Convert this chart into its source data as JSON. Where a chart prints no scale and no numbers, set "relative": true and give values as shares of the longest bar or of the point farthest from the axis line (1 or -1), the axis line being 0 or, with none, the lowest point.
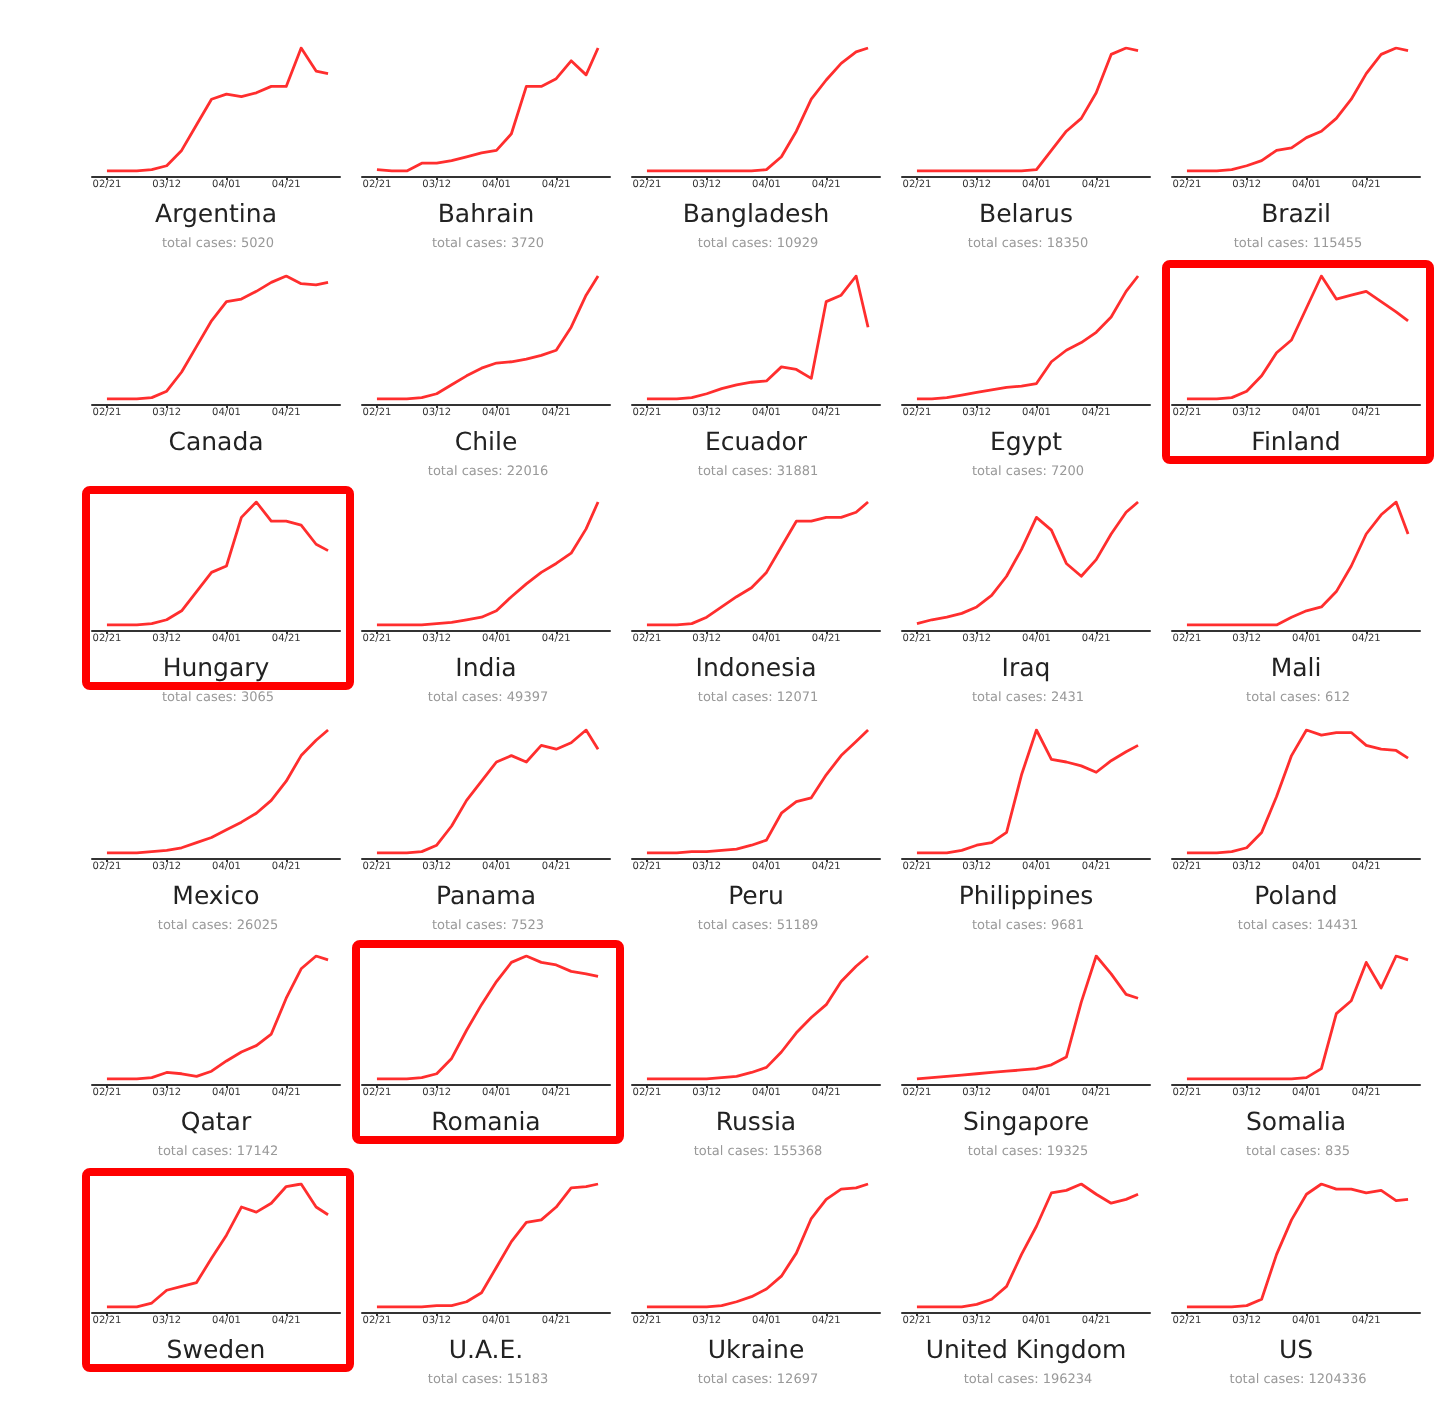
{
  "chart_data": [
    {
      "type": "line",
      "xlabel": "Argentina",
      "annotations": [
        "total cases: 5020"
      ],
      "relative": true,
      "marker": "none",
      "x": [
        "--02-21",
        "--02-26",
        "--03-02",
        "--03-07",
        "--03-12",
        "--03-17",
        "--03-22",
        "--03-27",
        "--04-01",
        "--04-06",
        "--04-11",
        "--04-16",
        "--04-21",
        "--04-26",
        "--05-01",
        "--05-05"
      ],
      "xlim": [
        "--02-16",
        "--05-09"
      ],
      "xticks": [
        {
          "value": "--02-21",
          "label": "02/21"
        },
        {
          "value": "--03-12",
          "label": "03/12"
        },
        {
          "value": "--04-01",
          "label": "04/01"
        },
        {
          "value": "--04-21",
          "label": "04/21"
        }
      ],
      "series": [
        {
          "color": "#ff2e2e",
          "values": [
            0.04,
            0.04,
            0.04,
            0.05,
            0.08,
            0.2,
            0.4,
            0.6,
            0.64,
            0.62,
            0.65,
            0.7,
            0.7,
            1.0,
            0.82,
            0.8
          ]
        }
      ]
    },
    {
      "type": "line",
      "xlabel": "Bahrain",
      "annotations": [
        "total cases: 3720"
      ],
      "relative": true,
      "marker": "none",
      "x": [
        "--02-21",
        "--02-26",
        "--03-02",
        "--03-07",
        "--03-12",
        "--03-17",
        "--03-22",
        "--03-27",
        "--04-01",
        "--04-06",
        "--04-11",
        "--04-16",
        "--04-21",
        "--04-26",
        "--05-01",
        "--05-05"
      ],
      "xlim": [
        "--02-16",
        "--05-09"
      ],
      "xticks": [
        {
          "value": "--02-21",
          "label": "02/21"
        },
        {
          "value": "--03-12",
          "label": "03/12"
        },
        {
          "value": "--04-01",
          "label": "04/01"
        },
        {
          "value": "--04-21",
          "label": "04/21"
        }
      ],
      "series": [
        {
          "color": "#ff2e2e",
          "values": [
            0.05,
            0.04,
            0.04,
            0.1,
            0.1,
            0.12,
            0.15,
            0.18,
            0.2,
            0.33,
            0.7,
            0.7,
            0.76,
            0.9,
            0.79,
            1.0
          ]
        }
      ]
    },
    {
      "type": "line",
      "xlabel": "Bangladesh",
      "annotations": [
        "total cases: 10929"
      ],
      "relative": true,
      "marker": "none",
      "x": [
        "--02-21",
        "--02-26",
        "--03-02",
        "--03-07",
        "--03-12",
        "--03-17",
        "--03-22",
        "--03-27",
        "--04-01",
        "--04-06",
        "--04-11",
        "--04-16",
        "--04-21",
        "--04-26",
        "--05-01",
        "--05-05"
      ],
      "xlim": [
        "--02-16",
        "--05-09"
      ],
      "xticks": [
        {
          "value": "--02-21",
          "label": "02/21"
        },
        {
          "value": "--03-12",
          "label": "03/12"
        },
        {
          "value": "--04-01",
          "label": "04/01"
        },
        {
          "value": "--04-21",
          "label": "04/21"
        }
      ],
      "series": [
        {
          "color": "#ff2e2e",
          "values": [
            0.04,
            0.04,
            0.04,
            0.04,
            0.04,
            0.04,
            0.04,
            0.04,
            0.05,
            0.15,
            0.35,
            0.6,
            0.75,
            0.88,
            0.97,
            1.0
          ]
        }
      ]
    },
    {
      "type": "line",
      "xlabel": "Belarus",
      "annotations": [
        "total cases: 18350"
      ],
      "relative": true,
      "marker": "none",
      "x": [
        "--02-21",
        "--02-26",
        "--03-02",
        "--03-07",
        "--03-12",
        "--03-17",
        "--03-22",
        "--03-27",
        "--04-01",
        "--04-06",
        "--04-11",
        "--04-16",
        "--04-21",
        "--04-26",
        "--05-01",
        "--05-05"
      ],
      "xlim": [
        "--02-16",
        "--05-09"
      ],
      "xticks": [
        {
          "value": "--02-21",
          "label": "02/21"
        },
        {
          "value": "--03-12",
          "label": "03/12"
        },
        {
          "value": "--04-01",
          "label": "04/01"
        },
        {
          "value": "--04-21",
          "label": "04/21"
        }
      ],
      "series": [
        {
          "color": "#ff2e2e",
          "values": [
            0.04,
            0.04,
            0.04,
            0.04,
            0.04,
            0.04,
            0.04,
            0.04,
            0.05,
            0.2,
            0.35,
            0.45,
            0.65,
            0.95,
            1.0,
            0.98
          ]
        }
      ]
    },
    {
      "type": "line",
      "xlabel": "Brazil",
      "annotations": [
        "total cases: 115455"
      ],
      "relative": true,
      "marker": "none",
      "x": [
        "--02-21",
        "--02-26",
        "--03-02",
        "--03-07",
        "--03-12",
        "--03-17",
        "--03-22",
        "--03-27",
        "--04-01",
        "--04-06",
        "--04-11",
        "--04-16",
        "--04-21",
        "--04-26",
        "--05-01",
        "--05-05"
      ],
      "xlim": [
        "--02-16",
        "--05-09"
      ],
      "xticks": [
        {
          "value": "--02-21",
          "label": "02/21"
        },
        {
          "value": "--03-12",
          "label": "03/12"
        },
        {
          "value": "--04-01",
          "label": "04/01"
        },
        {
          "value": "--04-21",
          "label": "04/21"
        }
      ],
      "series": [
        {
          "color": "#ff2e2e",
          "values": [
            0.04,
            0.04,
            0.04,
            0.05,
            0.08,
            0.12,
            0.2,
            0.22,
            0.3,
            0.35,
            0.45,
            0.6,
            0.8,
            0.95,
            1.0,
            0.98
          ]
        }
      ]
    },
    {
      "type": "line",
      "xlabel": "Canada",
      "relative": true,
      "marker": "none",
      "x": [
        "--02-21",
        "--02-26",
        "--03-02",
        "--03-07",
        "--03-12",
        "--03-17",
        "--03-22",
        "--03-27",
        "--04-01",
        "--04-06",
        "--04-11",
        "--04-16",
        "--04-21",
        "--04-26",
        "--05-01",
        "--05-05"
      ],
      "xlim": [
        "--02-16",
        "--05-09"
      ],
      "xticks": [
        {
          "value": "--02-21",
          "label": "02/21"
        },
        {
          "value": "--03-12",
          "label": "03/12"
        },
        {
          "value": "--04-01",
          "label": "04/01"
        },
        {
          "value": "--04-21",
          "label": "04/21"
        }
      ],
      "series": [
        {
          "color": "#ff2e2e",
          "values": [
            0.04,
            0.04,
            0.04,
            0.05,
            0.1,
            0.25,
            0.45,
            0.65,
            0.8,
            0.82,
            0.88,
            0.95,
            1.0,
            0.94,
            0.93,
            0.95
          ]
        }
      ]
    },
    {
      "type": "line",
      "xlabel": "Chile",
      "annotations": [
        "total cases: 22016"
      ],
      "relative": true,
      "marker": "none",
      "x": [
        "--02-21",
        "--02-26",
        "--03-02",
        "--03-07",
        "--03-12",
        "--03-17",
        "--03-22",
        "--03-27",
        "--04-01",
        "--04-06",
        "--04-11",
        "--04-16",
        "--04-21",
        "--04-26",
        "--05-01",
        "--05-05"
      ],
      "xlim": [
        "--02-16",
        "--05-09"
      ],
      "xticks": [
        {
          "value": "--02-21",
          "label": "02/21"
        },
        {
          "value": "--03-12",
          "label": "03/12"
        },
        {
          "value": "--04-01",
          "label": "04/01"
        },
        {
          "value": "--04-21",
          "label": "04/21"
        }
      ],
      "series": [
        {
          "color": "#ff2e2e",
          "values": [
            0.04,
            0.04,
            0.04,
            0.05,
            0.08,
            0.15,
            0.22,
            0.28,
            0.32,
            0.33,
            0.35,
            0.38,
            0.42,
            0.6,
            0.85,
            1.0
          ]
        }
      ]
    },
    {
      "type": "line",
      "xlabel": "Ecuador",
      "annotations": [
        "total cases: 31881"
      ],
      "relative": true,
      "marker": "none",
      "x": [
        "--02-21",
        "--02-26",
        "--03-02",
        "--03-07",
        "--03-12",
        "--03-17",
        "--03-22",
        "--03-27",
        "--04-01",
        "--04-06",
        "--04-11",
        "--04-16",
        "--04-21",
        "--04-26",
        "--05-01",
        "--05-05"
      ],
      "xlim": [
        "--02-16",
        "--05-09"
      ],
      "xticks": [
        {
          "value": "--02-21",
          "label": "02/21"
        },
        {
          "value": "--03-12",
          "label": "03/12"
        },
        {
          "value": "--04-01",
          "label": "04/01"
        },
        {
          "value": "--04-21",
          "label": "04/21"
        }
      ],
      "series": [
        {
          "color": "#ff2e2e",
          "values": [
            0.04,
            0.04,
            0.04,
            0.05,
            0.08,
            0.12,
            0.15,
            0.17,
            0.18,
            0.29,
            0.27,
            0.2,
            0.8,
            0.85,
            1.0,
            0.6
          ]
        }
      ]
    },
    {
      "type": "line",
      "xlabel": "Egypt",
      "annotations": [
        "total cases: 7200"
      ],
      "relative": true,
      "marker": "none",
      "x": [
        "--02-21",
        "--02-26",
        "--03-02",
        "--03-07",
        "--03-12",
        "--03-17",
        "--03-22",
        "--03-27",
        "--04-01",
        "--04-06",
        "--04-11",
        "--04-16",
        "--04-21",
        "--04-26",
        "--05-01",
        "--05-05"
      ],
      "xlim": [
        "--02-16",
        "--05-09"
      ],
      "xticks": [
        {
          "value": "--02-21",
          "label": "02/21"
        },
        {
          "value": "--03-12",
          "label": "03/12"
        },
        {
          "value": "--04-01",
          "label": "04/01"
        },
        {
          "value": "--04-21",
          "label": "04/21"
        }
      ],
      "series": [
        {
          "color": "#ff2e2e",
          "values": [
            0.04,
            0.04,
            0.05,
            0.07,
            0.09,
            0.11,
            0.13,
            0.14,
            0.16,
            0.33,
            0.42,
            0.48,
            0.56,
            0.68,
            0.88,
            1.0
          ]
        }
      ]
    },
    {
      "type": "line",
      "xlabel": "Finland",
      "relative": true,
      "marker": "none",
      "x": [
        "--02-21",
        "--02-26",
        "--03-02",
        "--03-07",
        "--03-12",
        "--03-17",
        "--03-22",
        "--03-27",
        "--04-01",
        "--04-06",
        "--04-11",
        "--04-16",
        "--04-21",
        "--04-26",
        "--05-01",
        "--05-05"
      ],
      "xlim": [
        "--02-16",
        "--05-09"
      ],
      "xticks": [
        {
          "value": "--02-21",
          "label": "02/21"
        },
        {
          "value": "--03-12",
          "label": "03/12"
        },
        {
          "value": "--04-01",
          "label": "04/01"
        },
        {
          "value": "--04-21",
          "label": "04/21"
        }
      ],
      "series": [
        {
          "color": "#ff2e2e",
          "values": [
            0.04,
            0.04,
            0.04,
            0.05,
            0.1,
            0.22,
            0.4,
            0.5,
            0.75,
            1.0,
            0.82,
            0.85,
            0.88,
            0.8,
            0.72,
            0.65
          ]
        }
      ]
    },
    {
      "type": "line",
      "xlabel": "Hungary",
      "annotations": [
        "total cases: 3065"
      ],
      "relative": true,
      "marker": "none",
      "x": [
        "--02-21",
        "--02-26",
        "--03-02",
        "--03-07",
        "--03-12",
        "--03-17",
        "--03-22",
        "--03-27",
        "--04-01",
        "--04-06",
        "--04-11",
        "--04-16",
        "--04-21",
        "--04-26",
        "--05-01",
        "--05-05"
      ],
      "xlim": [
        "--02-16",
        "--05-09"
      ],
      "xticks": [
        {
          "value": "--02-21",
          "label": "02/21"
        },
        {
          "value": "--03-12",
          "label": "03/12"
        },
        {
          "value": "--04-01",
          "label": "04/01"
        },
        {
          "value": "--04-21",
          "label": "04/21"
        }
      ],
      "series": [
        {
          "color": "#ff2e2e",
          "values": [
            0.04,
            0.04,
            0.04,
            0.05,
            0.08,
            0.15,
            0.3,
            0.45,
            0.5,
            0.88,
            1.0,
            0.85,
            0.85,
            0.82,
            0.67,
            0.62
          ]
        }
      ]
    },
    {
      "type": "line",
      "xlabel": "India",
      "annotations": [
        "total cases: 49397"
      ],
      "relative": true,
      "marker": "none",
      "x": [
        "--02-21",
        "--02-26",
        "--03-02",
        "--03-07",
        "--03-12",
        "--03-17",
        "--03-22",
        "--03-27",
        "--04-01",
        "--04-06",
        "--04-11",
        "--04-16",
        "--04-21",
        "--04-26",
        "--05-01",
        "--05-05"
      ],
      "xlim": [
        "--02-16",
        "--05-09"
      ],
      "xticks": [
        {
          "value": "--02-21",
          "label": "02/21"
        },
        {
          "value": "--03-12",
          "label": "03/12"
        },
        {
          "value": "--04-01",
          "label": "04/01"
        },
        {
          "value": "--04-21",
          "label": "04/21"
        }
      ],
      "series": [
        {
          "color": "#ff2e2e",
          "values": [
            0.04,
            0.04,
            0.04,
            0.04,
            0.05,
            0.06,
            0.08,
            0.1,
            0.15,
            0.26,
            0.36,
            0.45,
            0.52,
            0.6,
            0.79,
            1.0
          ]
        }
      ]
    },
    {
      "type": "line",
      "xlabel": "Indonesia",
      "annotations": [
        "total cases: 12071"
      ],
      "relative": true,
      "marker": "none",
      "x": [
        "--02-21",
        "--02-26",
        "--03-02",
        "--03-07",
        "--03-12",
        "--03-17",
        "--03-22",
        "--03-27",
        "--04-01",
        "--04-06",
        "--04-11",
        "--04-16",
        "--04-21",
        "--04-26",
        "--05-01",
        "--05-05"
      ],
      "xlim": [
        "--02-16",
        "--05-09"
      ],
      "xticks": [
        {
          "value": "--02-21",
          "label": "02/21"
        },
        {
          "value": "--03-12",
          "label": "03/12"
        },
        {
          "value": "--04-01",
          "label": "04/01"
        },
        {
          "value": "--04-21",
          "label": "04/21"
        }
      ],
      "series": [
        {
          "color": "#ff2e2e",
          "values": [
            0.04,
            0.04,
            0.04,
            0.05,
            0.1,
            0.18,
            0.26,
            0.33,
            0.45,
            0.65,
            0.85,
            0.85,
            0.88,
            0.88,
            0.92,
            1.0
          ]
        }
      ]
    },
    {
      "type": "line",
      "xlabel": "Iraq",
      "annotations": [
        "total cases: 2431"
      ],
      "relative": true,
      "marker": "none",
      "x": [
        "--02-21",
        "--02-26",
        "--03-02",
        "--03-07",
        "--03-12",
        "--03-17",
        "--03-22",
        "--03-27",
        "--04-01",
        "--04-06",
        "--04-11",
        "--04-16",
        "--04-21",
        "--04-26",
        "--05-01",
        "--05-05"
      ],
      "xlim": [
        "--02-16",
        "--05-09"
      ],
      "xticks": [
        {
          "value": "--02-21",
          "label": "02/21"
        },
        {
          "value": "--03-12",
          "label": "03/12"
        },
        {
          "value": "--04-01",
          "label": "04/01"
        },
        {
          "value": "--04-21",
          "label": "04/21"
        }
      ],
      "series": [
        {
          "color": "#ff2e2e",
          "values": [
            0.05,
            0.08,
            0.1,
            0.13,
            0.18,
            0.27,
            0.42,
            0.63,
            0.88,
            0.78,
            0.52,
            0.42,
            0.55,
            0.75,
            0.92,
            1.0
          ]
        }
      ]
    },
    {
      "type": "line",
      "xlabel": "Mali",
      "annotations": [
        "total cases: 612"
      ],
      "relative": true,
      "marker": "none",
      "x": [
        "--02-21",
        "--02-26",
        "--03-02",
        "--03-07",
        "--03-12",
        "--03-17",
        "--03-22",
        "--03-27",
        "--04-01",
        "--04-06",
        "--04-11",
        "--04-16",
        "--04-21",
        "--04-26",
        "--05-01",
        "--05-05"
      ],
      "xlim": [
        "--02-16",
        "--05-09"
      ],
      "xticks": [
        {
          "value": "--02-21",
          "label": "02/21"
        },
        {
          "value": "--03-12",
          "label": "03/12"
        },
        {
          "value": "--04-01",
          "label": "04/01"
        },
        {
          "value": "--04-21",
          "label": "04/21"
        }
      ],
      "series": [
        {
          "color": "#ff2e2e",
          "values": [
            0.04,
            0.04,
            0.04,
            0.04,
            0.04,
            0.04,
            0.04,
            0.1,
            0.15,
            0.18,
            0.3,
            0.5,
            0.75,
            0.9,
            1.0,
            0.75
          ]
        }
      ]
    },
    {
      "type": "line",
      "xlabel": "Mexico",
      "annotations": [
        "total cases: 26025"
      ],
      "relative": true,
      "marker": "none",
      "x": [
        "--02-21",
        "--02-26",
        "--03-02",
        "--03-07",
        "--03-12",
        "--03-17",
        "--03-22",
        "--03-27",
        "--04-01",
        "--04-06",
        "--04-11",
        "--04-16",
        "--04-21",
        "--04-26",
        "--05-01",
        "--05-05"
      ],
      "xlim": [
        "--02-16",
        "--05-09"
      ],
      "xticks": [
        {
          "value": "--02-21",
          "label": "02/21"
        },
        {
          "value": "--03-12",
          "label": "03/12"
        },
        {
          "value": "--04-01",
          "label": "04/01"
        },
        {
          "value": "--04-21",
          "label": "04/21"
        }
      ],
      "series": [
        {
          "color": "#ff2e2e",
          "values": [
            0.04,
            0.04,
            0.04,
            0.05,
            0.06,
            0.08,
            0.12,
            0.16,
            0.22,
            0.28,
            0.35,
            0.45,
            0.6,
            0.8,
            0.92,
            1.0
          ]
        }
      ]
    },
    {
      "type": "line",
      "xlabel": "Panama",
      "annotations": [
        "total cases: 7523"
      ],
      "relative": true,
      "marker": "none",
      "x": [
        "--02-21",
        "--02-26",
        "--03-02",
        "--03-07",
        "--03-12",
        "--03-17",
        "--03-22",
        "--03-27",
        "--04-01",
        "--04-06",
        "--04-11",
        "--04-16",
        "--04-21",
        "--04-26",
        "--05-01",
        "--05-05"
      ],
      "xlim": [
        "--02-16",
        "--05-09"
      ],
      "xticks": [
        {
          "value": "--02-21",
          "label": "02/21"
        },
        {
          "value": "--03-12",
          "label": "03/12"
        },
        {
          "value": "--04-01",
          "label": "04/01"
        },
        {
          "value": "--04-21",
          "label": "04/21"
        }
      ],
      "series": [
        {
          "color": "#ff2e2e",
          "values": [
            0.04,
            0.04,
            0.04,
            0.05,
            0.1,
            0.25,
            0.45,
            0.6,
            0.75,
            0.8,
            0.75,
            0.88,
            0.85,
            0.9,
            1.0,
            0.85
          ]
        }
      ]
    },
    {
      "type": "line",
      "xlabel": "Peru",
      "annotations": [
        "total cases: 51189"
      ],
      "relative": true,
      "marker": "none",
      "x": [
        "--02-21",
        "--02-26",
        "--03-02",
        "--03-07",
        "--03-12",
        "--03-17",
        "--03-22",
        "--03-27",
        "--04-01",
        "--04-06",
        "--04-11",
        "--04-16",
        "--04-21",
        "--04-26",
        "--05-01",
        "--05-05"
      ],
      "xlim": [
        "--02-16",
        "--05-09"
      ],
      "xticks": [
        {
          "value": "--02-21",
          "label": "02/21"
        },
        {
          "value": "--03-12",
          "label": "03/12"
        },
        {
          "value": "--04-01",
          "label": "04/01"
        },
        {
          "value": "--04-21",
          "label": "04/21"
        }
      ],
      "series": [
        {
          "color": "#ff2e2e",
          "values": [
            0.04,
            0.04,
            0.04,
            0.05,
            0.05,
            0.06,
            0.07,
            0.1,
            0.14,
            0.35,
            0.44,
            0.47,
            0.65,
            0.8,
            0.91,
            1.0
          ]
        }
      ]
    },
    {
      "type": "line",
      "xlabel": "Philippines",
      "annotations": [
        "total cases: 9681"
      ],
      "relative": true,
      "marker": "none",
      "x": [
        "--02-21",
        "--02-26",
        "--03-02",
        "--03-07",
        "--03-12",
        "--03-17",
        "--03-22",
        "--03-27",
        "--04-01",
        "--04-06",
        "--04-11",
        "--04-16",
        "--04-21",
        "--04-26",
        "--05-01",
        "--05-05"
      ],
      "xlim": [
        "--02-16",
        "--05-09"
      ],
      "xticks": [
        {
          "value": "--02-21",
          "label": "02/21"
        },
        {
          "value": "--03-12",
          "label": "03/12"
        },
        {
          "value": "--04-01",
          "label": "04/01"
        },
        {
          "value": "--04-21",
          "label": "04/21"
        }
      ],
      "series": [
        {
          "color": "#ff2e2e",
          "values": [
            0.04,
            0.04,
            0.04,
            0.06,
            0.1,
            0.12,
            0.2,
            0.65,
            1.0,
            0.77,
            0.75,
            0.72,
            0.67,
            0.76,
            0.83,
            0.88
          ]
        }
      ]
    },
    {
      "type": "line",
      "xlabel": "Poland",
      "annotations": [
        "total cases: 14431"
      ],
      "relative": true,
      "marker": "none",
      "x": [
        "--02-21",
        "--02-26",
        "--03-02",
        "--03-07",
        "--03-12",
        "--03-17",
        "--03-22",
        "--03-27",
        "--04-01",
        "--04-06",
        "--04-11",
        "--04-16",
        "--04-21",
        "--04-26",
        "--05-01",
        "--05-05"
      ],
      "xlim": [
        "--02-16",
        "--05-09"
      ],
      "xticks": [
        {
          "value": "--02-21",
          "label": "02/21"
        },
        {
          "value": "--03-12",
          "label": "03/12"
        },
        {
          "value": "--04-01",
          "label": "04/01"
        },
        {
          "value": "--04-21",
          "label": "04/21"
        }
      ],
      "series": [
        {
          "color": "#ff2e2e",
          "values": [
            0.04,
            0.04,
            0.04,
            0.05,
            0.08,
            0.2,
            0.48,
            0.8,
            1.0,
            0.96,
            0.98,
            0.98,
            0.88,
            0.85,
            0.84,
            0.78
          ]
        }
      ]
    },
    {
      "type": "line",
      "xlabel": "Qatar",
      "annotations": [
        "total cases: 17142"
      ],
      "relative": true,
      "marker": "none",
      "x": [
        "--02-21",
        "--02-26",
        "--03-02",
        "--03-07",
        "--03-12",
        "--03-17",
        "--03-22",
        "--03-27",
        "--04-01",
        "--04-06",
        "--04-11",
        "--04-16",
        "--04-21",
        "--04-26",
        "--05-01",
        "--05-05"
      ],
      "xlim": [
        "--02-16",
        "--05-09"
      ],
      "xticks": [
        {
          "value": "--02-21",
          "label": "02/21"
        },
        {
          "value": "--03-12",
          "label": "03/12"
        },
        {
          "value": "--04-01",
          "label": "04/01"
        },
        {
          "value": "--04-21",
          "label": "04/21"
        }
      ],
      "series": [
        {
          "color": "#ff2e2e",
          "values": [
            0.04,
            0.04,
            0.04,
            0.05,
            0.09,
            0.08,
            0.06,
            0.1,
            0.18,
            0.25,
            0.3,
            0.39,
            0.67,
            0.9,
            1.0,
            0.97
          ]
        }
      ]
    },
    {
      "type": "line",
      "xlabel": "Romania",
      "relative": true,
      "marker": "none",
      "x": [
        "--02-21",
        "--02-26",
        "--03-02",
        "--03-07",
        "--03-12",
        "--03-17",
        "--03-22",
        "--03-27",
        "--04-01",
        "--04-06",
        "--04-11",
        "--04-16",
        "--04-21",
        "--04-26",
        "--05-01",
        "--05-05"
      ],
      "xlim": [
        "--02-16",
        "--05-09"
      ],
      "xticks": [
        {
          "value": "--02-21",
          "label": "02/21"
        },
        {
          "value": "--03-12",
          "label": "03/12"
        },
        {
          "value": "--04-01",
          "label": "04/01"
        },
        {
          "value": "--04-21",
          "label": "04/21"
        }
      ],
      "series": [
        {
          "color": "#ff2e2e",
          "values": [
            0.04,
            0.04,
            0.04,
            0.05,
            0.08,
            0.2,
            0.42,
            0.62,
            0.8,
            0.95,
            1.0,
            0.95,
            0.93,
            0.88,
            0.86,
            0.84
          ]
        }
      ]
    },
    {
      "type": "line",
      "xlabel": "Russia",
      "annotations": [
        "total cases: 155368"
      ],
      "relative": true,
      "marker": "none",
      "x": [
        "--02-21",
        "--02-26",
        "--03-02",
        "--03-07",
        "--03-12",
        "--03-17",
        "--03-22",
        "--03-27",
        "--04-01",
        "--04-06",
        "--04-11",
        "--04-16",
        "--04-21",
        "--04-26",
        "--05-01",
        "--05-05"
      ],
      "xlim": [
        "--02-16",
        "--05-09"
      ],
      "xticks": [
        {
          "value": "--02-21",
          "label": "02/21"
        },
        {
          "value": "--03-12",
          "label": "03/12"
        },
        {
          "value": "--04-01",
          "label": "04/01"
        },
        {
          "value": "--04-21",
          "label": "04/21"
        }
      ],
      "series": [
        {
          "color": "#ff2e2e",
          "values": [
            0.04,
            0.04,
            0.04,
            0.04,
            0.04,
            0.05,
            0.06,
            0.09,
            0.13,
            0.25,
            0.4,
            0.52,
            0.62,
            0.8,
            0.92,
            1.0
          ]
        }
      ]
    },
    {
      "type": "line",
      "xlabel": "Singapore",
      "annotations": [
        "total cases: 19325"
      ],
      "relative": true,
      "marker": "none",
      "x": [
        "--02-21",
        "--02-26",
        "--03-02",
        "--03-07",
        "--03-12",
        "--03-17",
        "--03-22",
        "--03-27",
        "--04-01",
        "--04-06",
        "--04-11",
        "--04-16",
        "--04-21",
        "--04-26",
        "--05-01",
        "--05-05"
      ],
      "xlim": [
        "--02-16",
        "--05-09"
      ],
      "xticks": [
        {
          "value": "--02-21",
          "label": "02/21"
        },
        {
          "value": "--03-12",
          "label": "03/12"
        },
        {
          "value": "--04-01",
          "label": "04/01"
        },
        {
          "value": "--04-21",
          "label": "04/21"
        }
      ],
      "series": [
        {
          "color": "#ff2e2e",
          "values": [
            0.04,
            0.05,
            0.06,
            0.07,
            0.08,
            0.09,
            0.1,
            0.11,
            0.12,
            0.15,
            0.21,
            0.64,
            1.0,
            0.86,
            0.7,
            0.67
          ]
        }
      ]
    },
    {
      "type": "line",
      "xlabel": "Somalia",
      "annotations": [
        "total cases: 835"
      ],
      "relative": true,
      "marker": "none",
      "x": [
        "--02-21",
        "--02-26",
        "--03-02",
        "--03-07",
        "--03-12",
        "--03-17",
        "--03-22",
        "--03-27",
        "--04-01",
        "--04-06",
        "--04-11",
        "--04-16",
        "--04-21",
        "--04-26",
        "--05-01",
        "--05-05"
      ],
      "xlim": [
        "--02-16",
        "--05-09"
      ],
      "xticks": [
        {
          "value": "--02-21",
          "label": "02/21"
        },
        {
          "value": "--03-12",
          "label": "03/12"
        },
        {
          "value": "--04-01",
          "label": "04/01"
        },
        {
          "value": "--04-21",
          "label": "04/21"
        }
      ],
      "series": [
        {
          "color": "#ff2e2e",
          "values": [
            0.04,
            0.04,
            0.04,
            0.04,
            0.04,
            0.04,
            0.04,
            0.04,
            0.05,
            0.12,
            0.55,
            0.65,
            0.95,
            0.75,
            1.0,
            0.97
          ]
        }
      ]
    },
    {
      "type": "line",
      "xlabel": "Sweden",
      "relative": true,
      "marker": "none",
      "x": [
        "--02-21",
        "--02-26",
        "--03-02",
        "--03-07",
        "--03-12",
        "--03-17",
        "--03-22",
        "--03-27",
        "--04-01",
        "--04-06",
        "--04-11",
        "--04-16",
        "--04-21",
        "--04-26",
        "--05-01",
        "--05-05"
      ],
      "xlim": [
        "--02-16",
        "--05-09"
      ],
      "xticks": [
        {
          "value": "--02-21",
          "label": "02/21"
        },
        {
          "value": "--03-12",
          "label": "03/12"
        },
        {
          "value": "--04-01",
          "label": "04/01"
        },
        {
          "value": "--04-21",
          "label": "04/21"
        }
      ],
      "series": [
        {
          "color": "#ff2e2e",
          "values": [
            0.04,
            0.04,
            0.04,
            0.07,
            0.17,
            0.2,
            0.23,
            0.42,
            0.6,
            0.82,
            0.78,
            0.85,
            0.98,
            1.0,
            0.82,
            0.76
          ]
        }
      ]
    },
    {
      "type": "line",
      "xlabel": "U.A.E.",
      "annotations": [
        "total cases: 15183"
      ],
      "relative": true,
      "marker": "none",
      "x": [
        "--02-21",
        "--02-26",
        "--03-02",
        "--03-07",
        "--03-12",
        "--03-17",
        "--03-22",
        "--03-27",
        "--04-01",
        "--04-06",
        "--04-11",
        "--04-16",
        "--04-21",
        "--04-26",
        "--05-01",
        "--05-05"
      ],
      "xlim": [
        "--02-16",
        "--05-09"
      ],
      "xticks": [
        {
          "value": "--02-21",
          "label": "02/21"
        },
        {
          "value": "--03-12",
          "label": "03/12"
        },
        {
          "value": "--04-01",
          "label": "04/01"
        },
        {
          "value": "--04-21",
          "label": "04/21"
        }
      ],
      "series": [
        {
          "color": "#ff2e2e",
          "values": [
            0.04,
            0.04,
            0.04,
            0.04,
            0.05,
            0.05,
            0.08,
            0.15,
            0.35,
            0.55,
            0.7,
            0.72,
            0.82,
            0.97,
            0.98,
            1.0
          ]
        }
      ]
    },
    {
      "type": "line",
      "xlabel": "Ukraine",
      "annotations": [
        "total cases: 12697"
      ],
      "relative": true,
      "marker": "none",
      "x": [
        "--02-21",
        "--02-26",
        "--03-02",
        "--03-07",
        "--03-12",
        "--03-17",
        "--03-22",
        "--03-27",
        "--04-01",
        "--04-06",
        "--04-11",
        "--04-16",
        "--04-21",
        "--04-26",
        "--05-01",
        "--05-05"
      ],
      "xlim": [
        "--02-16",
        "--05-09"
      ],
      "xticks": [
        {
          "value": "--02-21",
          "label": "02/21"
        },
        {
          "value": "--03-12",
          "label": "03/12"
        },
        {
          "value": "--04-01",
          "label": "04/01"
        },
        {
          "value": "--04-21",
          "label": "04/21"
        }
      ],
      "series": [
        {
          "color": "#ff2e2e",
          "values": [
            0.04,
            0.04,
            0.04,
            0.04,
            0.04,
            0.05,
            0.08,
            0.12,
            0.18,
            0.28,
            0.46,
            0.73,
            0.88,
            0.96,
            0.97,
            1.0
          ]
        }
      ]
    },
    {
      "type": "line",
      "xlabel": "United Kingdom",
      "annotations": [
        "total cases: 196234"
      ],
      "relative": true,
      "marker": "none",
      "x": [
        "--02-21",
        "--02-26",
        "--03-02",
        "--03-07",
        "--03-12",
        "--03-17",
        "--03-22",
        "--03-27",
        "--04-01",
        "--04-06",
        "--04-11",
        "--04-16",
        "--04-21",
        "--04-26",
        "--05-01",
        "--05-05"
      ],
      "xlim": [
        "--02-16",
        "--05-09"
      ],
      "xticks": [
        {
          "value": "--02-21",
          "label": "02/21"
        },
        {
          "value": "--03-12",
          "label": "03/12"
        },
        {
          "value": "--04-01",
          "label": "04/01"
        },
        {
          "value": "--04-21",
          "label": "04/21"
        }
      ],
      "series": [
        {
          "color": "#ff2e2e",
          "values": [
            0.04,
            0.04,
            0.04,
            0.04,
            0.06,
            0.1,
            0.2,
            0.45,
            0.67,
            0.93,
            0.95,
            1.0,
            0.92,
            0.85,
            0.88,
            0.92
          ]
        }
      ]
    },
    {
      "type": "line",
      "xlabel": "US",
      "annotations": [
        "total cases: 1204336"
      ],
      "relative": true,
      "marker": "none",
      "x": [
        "--02-21",
        "--02-26",
        "--03-02",
        "--03-07",
        "--03-12",
        "--03-17",
        "--03-22",
        "--03-27",
        "--04-01",
        "--04-06",
        "--04-11",
        "--04-16",
        "--04-21",
        "--04-26",
        "--05-01",
        "--05-05"
      ],
      "xlim": [
        "--02-16",
        "--05-09"
      ],
      "xticks": [
        {
          "value": "--02-21",
          "label": "02/21"
        },
        {
          "value": "--03-12",
          "label": "03/12"
        },
        {
          "value": "--04-01",
          "label": "04/01"
        },
        {
          "value": "--04-21",
          "label": "04/21"
        }
      ],
      "series": [
        {
          "color": "#ff2e2e",
          "values": [
            0.04,
            0.04,
            0.04,
            0.04,
            0.05,
            0.1,
            0.45,
            0.72,
            0.92,
            1.0,
            0.96,
            0.96,
            0.93,
            0.95,
            0.87,
            0.88
          ]
        }
      ]
    }
  ]
}
